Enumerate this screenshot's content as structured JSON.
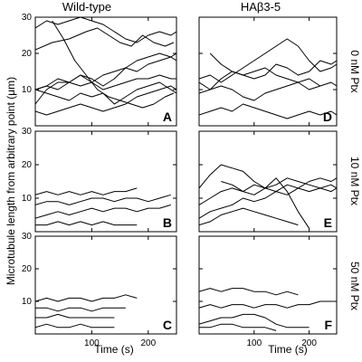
{
  "figure": {
    "column_titles": [
      "Wild-type",
      "HAβ3-5"
    ],
    "row_labels": [
      "0 nM Ptx",
      "10 nM Ptx",
      "50 nM Ptx"
    ],
    "ylabel": "Microtubule length from arbitrary point (μm)",
    "xlabel": "Time (s)",
    "line_color": "#000000",
    "background": "#ffffff"
  },
  "chart_data": [
    {
      "type": "line",
      "panel": "A",
      "column": "Wild-type",
      "row": "0 nM Ptx",
      "xlim": [
        0,
        250
      ],
      "ylim": [
        0,
        30
      ],
      "yticks": [
        10,
        20,
        30
      ],
      "xticks": [],
      "series": [
        {
          "x": [
            0,
            20,
            40,
            60,
            80,
            100,
            120,
            140,
            160,
            180,
            200,
            220,
            240,
            250
          ],
          "y": [
            27,
            29,
            28,
            29,
            30,
            29,
            28,
            26,
            24,
            23,
            25,
            26,
            25,
            26
          ]
        },
        {
          "x": [
            0,
            20,
            40,
            60,
            80,
            100,
            120,
            140,
            160,
            180,
            200,
            220,
            240,
            250
          ],
          "y": [
            6,
            10,
            12,
            12,
            11,
            12,
            14,
            15,
            16,
            15,
            17,
            18,
            19,
            18
          ]
        },
        {
          "x": [
            0,
            20,
            40,
            60,
            80,
            100,
            120,
            140,
            160,
            180,
            200,
            220,
            240,
            250
          ],
          "y": [
            10,
            11,
            10,
            12,
            14,
            13,
            11,
            13,
            16,
            18,
            19,
            20,
            19,
            20
          ]
        },
        {
          "x": [
            0,
            20,
            40,
            60,
            80,
            100,
            120,
            140,
            160,
            180,
            200,
            220,
            240,
            250
          ],
          "y": [
            10,
            11,
            13,
            12,
            14,
            12,
            10,
            11,
            12,
            13,
            13,
            14,
            13,
            13
          ]
        },
        {
          "x": [
            0,
            20,
            40,
            60,
            80,
            100,
            120,
            140,
            160,
            180,
            200,
            220,
            240,
            250
          ],
          "y": [
            10,
            9,
            8,
            7,
            9,
            8,
            9,
            6,
            8,
            10,
            11,
            12,
            10,
            9
          ]
        },
        {
          "x": [
            0,
            20,
            40,
            60,
            80,
            100,
            120,
            140,
            160,
            180,
            200,
            220,
            240,
            250
          ],
          "y": [
            4,
            3,
            4,
            5,
            6,
            5,
            4,
            5,
            6,
            8,
            9,
            10,
            11,
            10
          ]
        },
        {
          "x": [
            0,
            30,
            60,
            90,
            110,
            130,
            150,
            170,
            190,
            210,
            230,
            245
          ],
          "y": [
            21,
            23,
            24,
            26,
            27,
            25,
            23,
            22,
            25,
            23,
            22,
            23
          ]
        },
        {
          "x": [
            30,
            50,
            70,
            90,
            110,
            130,
            150,
            170,
            190,
            210,
            230,
            245
          ],
          "y": [
            29,
            24,
            18,
            14,
            10,
            8,
            7,
            6,
            5,
            6,
            8,
            9
          ]
        }
      ]
    },
    {
      "type": "line",
      "panel": "D",
      "column": "HAβ3-5",
      "row": "0 nM Ptx",
      "xlim": [
        0,
        250
      ],
      "ylim": [
        0,
        30
      ],
      "yticks": [],
      "xticks": [],
      "series": [
        {
          "x": [
            0,
            20,
            40,
            60,
            80,
            100,
            120,
            140,
            160,
            180,
            200,
            220,
            240,
            250
          ],
          "y": [
            13,
            14,
            12,
            14,
            16,
            18,
            20,
            22,
            24,
            22,
            18,
            15,
            16,
            17
          ]
        },
        {
          "x": [
            0,
            20,
            40,
            60,
            80,
            100,
            120,
            140,
            160,
            180,
            200,
            220,
            240,
            250
          ],
          "y": [
            12,
            10,
            13,
            15,
            14,
            13,
            14,
            17,
            16,
            14,
            15,
            18,
            17,
            18
          ]
        },
        {
          "x": [
            0,
            20,
            40,
            60,
            80,
            100,
            120,
            140,
            160,
            180,
            200,
            220,
            240,
            250
          ],
          "y": [
            9,
            10,
            11,
            10,
            8,
            7,
            9,
            10,
            11,
            12,
            10,
            11,
            12,
            11
          ]
        },
        {
          "x": [
            0,
            20,
            40,
            60,
            80,
            100,
            120,
            140,
            160,
            180,
            200,
            220,
            240,
            250
          ],
          "y": [
            3,
            4,
            5,
            4,
            6,
            5,
            4,
            3,
            2,
            3,
            4,
            3,
            4,
            3
          ]
        },
        {
          "x": [
            20,
            40,
            60,
            80,
            100,
            120,
            140,
            160,
            180,
            200,
            220
          ],
          "y": [
            20,
            17,
            15,
            14,
            15,
            16,
            14,
            13,
            12,
            13,
            11
          ]
        }
      ]
    },
    {
      "type": "line",
      "panel": "B",
      "column": "Wild-type",
      "row": "10 nM Ptx",
      "xlim": [
        0,
        250
      ],
      "ylim": [
        0,
        30
      ],
      "yticks": [
        10,
        20,
        30
      ],
      "xticks": [],
      "series": [
        {
          "x": [
            0,
            20,
            40,
            60,
            80,
            100,
            120,
            140,
            160,
            180
          ],
          "y": [
            11,
            12,
            11,
            12,
            11,
            12,
            11,
            12,
            12,
            13
          ]
        },
        {
          "x": [
            0,
            20,
            40,
            60,
            80,
            100,
            120,
            140,
            160,
            180,
            200,
            220,
            240
          ],
          "y": [
            8,
            9,
            9,
            8,
            9,
            10,
            10,
            9,
            10,
            10,
            9,
            10,
            11
          ]
        },
        {
          "x": [
            0,
            20,
            40,
            60,
            80,
            100,
            120,
            140,
            160,
            180,
            200,
            220,
            240
          ],
          "y": [
            4,
            5,
            6,
            5,
            6,
            7,
            6,
            7,
            7,
            6,
            7,
            7,
            8
          ]
        },
        {
          "x": [
            0,
            20,
            40,
            60,
            80,
            100,
            120,
            140,
            160,
            180
          ],
          "y": [
            2,
            2,
            3,
            2,
            3,
            2,
            3,
            2,
            2,
            2
          ]
        }
      ]
    },
    {
      "type": "line",
      "panel": "E",
      "column": "HAβ3-5",
      "row": "10 nM Ptx",
      "xlim": [
        0,
        250
      ],
      "ylim": [
        0,
        30
      ],
      "yticks": [],
      "xticks": [],
      "series": [
        {
          "x": [
            0,
            20,
            40,
            60,
            80,
            100,
            120,
            140,
            160,
            180,
            200,
            220,
            240,
            250
          ],
          "y": [
            13,
            17,
            20,
            19,
            18,
            15,
            13,
            14,
            16,
            15,
            14,
            13,
            12,
            13
          ]
        },
        {
          "x": [
            0,
            20,
            40,
            60,
            80,
            100,
            120,
            140,
            160,
            180,
            200,
            220,
            240,
            250
          ],
          "y": [
            8,
            10,
            12,
            13,
            12,
            14,
            13,
            12,
            11,
            13,
            15,
            16,
            15,
            16
          ]
        },
        {
          "x": [
            0,
            20,
            40,
            60,
            80,
            100,
            120,
            140,
            160,
            180,
            200,
            220,
            240,
            250
          ],
          "y": [
            4,
            6,
            7,
            8,
            10,
            9,
            10,
            12,
            14,
            13,
            12,
            13,
            14,
            13
          ]
        },
        {
          "x": [
            0,
            20,
            40,
            60,
            80,
            100,
            120,
            140,
            160,
            180
          ],
          "y": [
            2,
            3,
            5,
            6,
            7,
            6,
            5,
            4,
            3,
            2
          ]
        },
        {
          "x": [
            40,
            60,
            80,
            100,
            120,
            140,
            160,
            180,
            200
          ],
          "y": [
            15,
            14,
            12,
            11,
            13,
            16,
            12,
            6,
            1
          ]
        }
      ]
    },
    {
      "type": "line",
      "panel": "C",
      "column": "Wild-type",
      "row": "50 nM Ptx",
      "xlim": [
        0,
        250
      ],
      "ylim": [
        0,
        30
      ],
      "yticks": [
        10,
        20,
        30
      ],
      "xticks": [
        100,
        200
      ],
      "series": [
        {
          "x": [
            0,
            20,
            40,
            60,
            80,
            100,
            120,
            140,
            160,
            180
          ],
          "y": [
            10,
            11,
            10,
            11,
            11,
            10,
            11,
            11,
            12,
            11
          ]
        },
        {
          "x": [
            0,
            20,
            40,
            60,
            80,
            100,
            120,
            140,
            160
          ],
          "y": [
            8,
            8,
            7,
            8,
            8,
            7,
            8,
            8,
            8
          ]
        },
        {
          "x": [
            0,
            20,
            40,
            60,
            80,
            100,
            120,
            140
          ],
          "y": [
            5,
            5,
            6,
            5,
            5,
            5,
            5,
            5
          ]
        },
        {
          "x": [
            0,
            20,
            40,
            60,
            80,
            100,
            120,
            140
          ],
          "y": [
            2,
            3,
            2,
            2,
            3,
            2,
            2,
            2
          ]
        }
      ]
    },
    {
      "type": "line",
      "panel": "F",
      "column": "HAβ3-5",
      "row": "50 nM Ptx",
      "xlim": [
        0,
        250
      ],
      "ylim": [
        0,
        30
      ],
      "yticks": [],
      "xticks": [
        100,
        200
      ],
      "series": [
        {
          "x": [
            0,
            20,
            40,
            60,
            80,
            100,
            120,
            140,
            160,
            180
          ],
          "y": [
            13,
            14,
            13,
            14,
            14,
            13,
            13,
            12,
            13,
            12
          ]
        },
        {
          "x": [
            0,
            20,
            40,
            60,
            80,
            100,
            120,
            140,
            160,
            180,
            200,
            220,
            240,
            250
          ],
          "y": [
            8,
            9,
            8,
            9,
            9,
            8,
            9,
            9,
            8,
            9,
            9,
            10,
            10,
            10
          ]
        },
        {
          "x": [
            0,
            20,
            40,
            60,
            80,
            100,
            120,
            140,
            160,
            180,
            200
          ],
          "y": [
            3,
            4,
            5,
            5,
            6,
            6,
            5,
            3,
            2,
            2,
            2
          ]
        },
        {
          "x": [
            0,
            20,
            40,
            60,
            80,
            100,
            120,
            140
          ],
          "y": [
            2,
            2,
            3,
            3,
            2,
            2,
            2,
            1
          ]
        }
      ]
    }
  ]
}
